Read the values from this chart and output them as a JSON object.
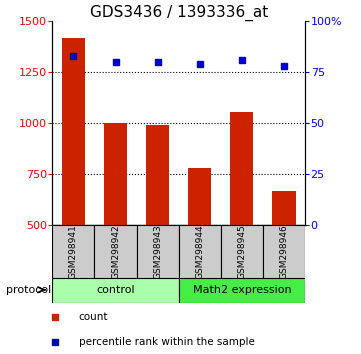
{
  "title": "GDS3436 / 1393336_at",
  "samples": [
    "GSM298941",
    "GSM298942",
    "GSM298943",
    "GSM298944",
    "GSM298945",
    "GSM298946"
  ],
  "counts": [
    1420,
    1000,
    990,
    780,
    1055,
    665
  ],
  "percentile_ranks": [
    83,
    80,
    80,
    79,
    81,
    78
  ],
  "ylim_left": [
    500,
    1500
  ],
  "ylim_right": [
    0,
    100
  ],
  "yticks_left": [
    500,
    750,
    1000,
    1250,
    1500
  ],
  "yticks_right": [
    0,
    25,
    50,
    75,
    100
  ],
  "ytick_labels_right": [
    "0",
    "25",
    "50",
    "75",
    "100%"
  ],
  "bar_color": "#cc2200",
  "dot_color": "#0000cc",
  "bar_width": 0.55,
  "grid_yticks": [
    750,
    1000,
    1250
  ],
  "groups": [
    {
      "label": "control",
      "color": "#aaffaa",
      "start": 0,
      "end": 3
    },
    {
      "label": "Math2 expression",
      "color": "#44ee44",
      "start": 3,
      "end": 6
    }
  ],
  "sample_box_color": "#cccccc",
  "legend_items": [
    {
      "label": "count",
      "color": "#cc2200"
    },
    {
      "label": "percentile rank within the sample",
      "color": "#0000cc"
    }
  ],
  "title_fontsize": 11,
  "tick_fontsize": 8,
  "label_fontsize": 6.5,
  "group_fontsize": 8,
  "proto_fontsize": 8,
  "legend_fontsize": 7.5
}
